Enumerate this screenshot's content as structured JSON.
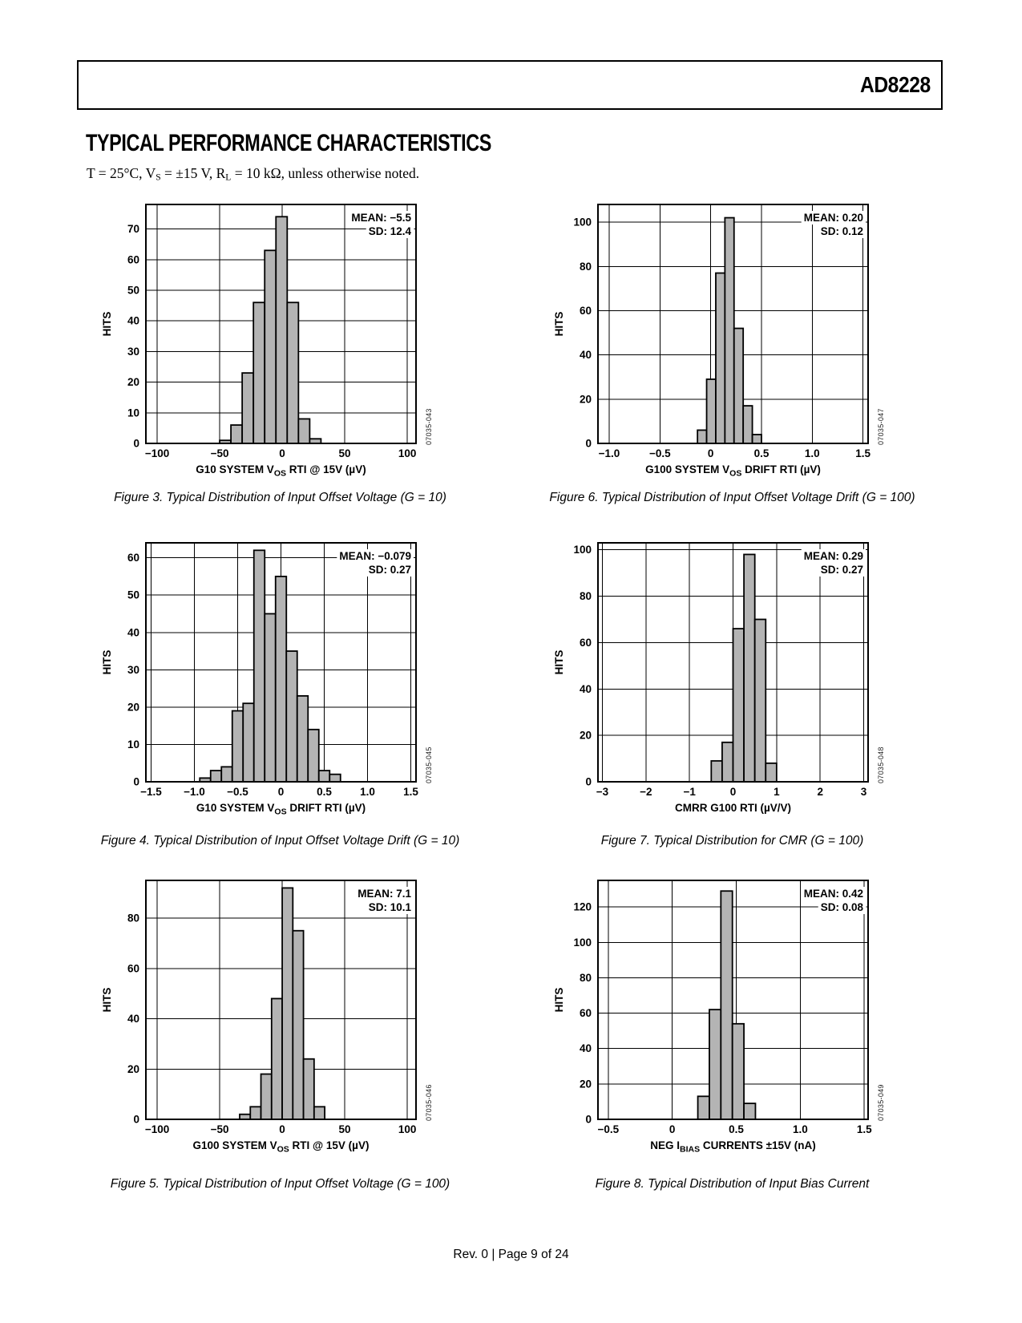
{
  "page": {
    "part_number": "AD8228",
    "section_title": "TYPICAL PERFORMANCE CHARACTERISTICS",
    "conditions_parts": [
      {
        "t": "T = 25°C, V"
      },
      {
        "t": "S",
        "sub": true
      },
      {
        "t": " = ±15 V, R"
      },
      {
        "t": "L",
        "sub": true
      },
      {
        "t": " = 10 kΩ, unless otherwise noted."
      }
    ],
    "footer": "Rev. 0 | Page 9 of 24"
  },
  "style": {
    "bar_fill": "#b4b4b4",
    "line_color": "#000000"
  },
  "chart_data": [
    {
      "type": "bar",
      "subtype": "histogram",
      "caption": "Figure 3. Typical Distribution of Input Offset Voltage (G = 10)",
      "code": "07035-043",
      "ylabel": "HITS",
      "xlabel_parts": [
        {
          "t": "G10 SYSTEM V"
        },
        {
          "t": "OS",
          "sub": true
        },
        {
          "t": " RTI @ 15V (µV)"
        }
      ],
      "xlim": [
        -109,
        107
      ],
      "ylim": [
        0,
        78
      ],
      "xticks": [
        -100,
        -50,
        0,
        50,
        100
      ],
      "xtick_labels": [
        "−100",
        "−50",
        "0",
        "50",
        "100"
      ],
      "yticks": [
        0,
        10,
        20,
        30,
        40,
        50,
        60,
        70
      ],
      "ytick_labels": [
        "0",
        "10",
        "20",
        "30",
        "40",
        "50",
        "60",
        "70"
      ],
      "bin_edges": [
        -50,
        -41,
        -32,
        -23,
        -14,
        -5,
        4,
        13,
        22,
        31
      ],
      "hits": [
        1,
        6,
        23,
        46,
        63,
        74,
        46,
        8,
        1.5
      ],
      "mean_label": "MEAN: −5.5",
      "sd_label": "SD: 12.4"
    },
    {
      "type": "bar",
      "subtype": "histogram",
      "caption": "Figure 6. Typical Distribution of Input Offset Voltage Drift (G = 100)",
      "code": "07035-047",
      "ylabel": "HITS",
      "xlabel_parts": [
        {
          "t": "G100 SYSTEM V"
        },
        {
          "t": "OS",
          "sub": true
        },
        {
          "t": " DRIFT RTI (µV)"
        }
      ],
      "xlim": [
        -1.11,
        1.55
      ],
      "ylim": [
        0,
        108
      ],
      "xticks": [
        -1.0,
        -0.5,
        0,
        0.5,
        1.0,
        1.5
      ],
      "xtick_labels": [
        "−1.0",
        "−0.5",
        "0",
        "0.5",
        "1.0",
        "1.5"
      ],
      "yticks": [
        0,
        20,
        40,
        60,
        80,
        100
      ],
      "ytick_labels": [
        "0",
        "20",
        "40",
        "60",
        "80",
        "100"
      ],
      "bin_edges": [
        -0.13,
        -0.04,
        0.05,
        0.14,
        0.23,
        0.32,
        0.41,
        0.5
      ],
      "hits": [
        6,
        29,
        77,
        102,
        52,
        17,
        4
      ],
      "mean_label": "MEAN: 0.20",
      "sd_label": "SD: 0.12"
    },
    {
      "type": "bar",
      "subtype": "histogram",
      "caption": "Figure 4. Typical Distribution of Input Offset Voltage Drift (G = 10)",
      "code": "07035-045",
      "ylabel": "HITS",
      "xlabel_parts": [
        {
          "t": "G10 SYSTEM V"
        },
        {
          "t": "OS",
          "sub": true
        },
        {
          "t": " DRIFT RTI (µV)"
        }
      ],
      "xlim": [
        -1.56,
        1.56
      ],
      "ylim": [
        0,
        64
      ],
      "xticks": [
        -1.5,
        -1.0,
        -0.5,
        0,
        0.5,
        1.0,
        1.5
      ],
      "xtick_labels": [
        "−1.5",
        "−1.0",
        "−0.5",
        "0",
        "0.5",
        "1.0",
        "1.5"
      ],
      "yticks": [
        0,
        10,
        20,
        30,
        40,
        50,
        60
      ],
      "ytick_labels": [
        "0",
        "10",
        "20",
        "30",
        "40",
        "50",
        "60"
      ],
      "bin_edges": [
        -0.9375,
        -0.8125,
        -0.6875,
        -0.5625,
        -0.4375,
        -0.3125,
        -0.1875,
        -0.0625,
        0.0625,
        0.1875,
        0.3125,
        0.4375,
        0.5625,
        0.6875
      ],
      "hits": [
        1,
        3,
        4,
        19,
        21,
        62,
        45,
        55,
        35,
        23,
        14,
        3,
        2
      ],
      "mean_label": "MEAN: −0.079",
      "sd_label": "SD: 0.27"
    },
    {
      "type": "bar",
      "subtype": "histogram",
      "caption": "Figure 7. Typical Distribution for CMR (G = 100)",
      "code": "07035-048",
      "ylabel": "HITS",
      "xlabel_parts": [
        {
          "t": "CMRR G100 RTI (µV/V)"
        }
      ],
      "xlim": [
        -3.1,
        3.1
      ],
      "ylim": [
        0,
        103
      ],
      "xticks": [
        -3,
        -2,
        -1,
        0,
        1,
        2,
        3
      ],
      "xtick_labels": [
        "−3",
        "−2",
        "−1",
        "0",
        "1",
        "2",
        "3"
      ],
      "yticks": [
        0,
        20,
        40,
        60,
        80,
        100
      ],
      "ytick_labels": [
        "0",
        "20",
        "40",
        "60",
        "80",
        "100"
      ],
      "bin_edges": [
        -0.5,
        -0.25,
        0,
        0.25,
        0.5,
        0.75,
        1
      ],
      "hits": [
        9,
        17,
        66,
        98,
        70,
        8
      ],
      "mean_label": "MEAN: 0.29",
      "sd_label": "SD: 0.27"
    },
    {
      "type": "bar",
      "subtype": "histogram",
      "caption": "Figure 5. Typical Distribution of Input Offset Voltage (G = 100)",
      "code": "07035-046",
      "ylabel": "HITS",
      "xlabel_parts": [
        {
          "t": "G100 SYSTEM V"
        },
        {
          "t": "OS",
          "sub": true
        },
        {
          "t": " RTI @ 15V (µV)"
        }
      ],
      "xlim": [
        -109,
        107
      ],
      "ylim": [
        0,
        95
      ],
      "xticks": [
        -100,
        -50,
        0,
        50,
        100
      ],
      "xtick_labels": [
        "−100",
        "−50",
        "0",
        "50",
        "100"
      ],
      "yticks": [
        0,
        20,
        40,
        60,
        80
      ],
      "ytick_labels": [
        "0",
        "20",
        "40",
        "60",
        "80"
      ],
      "bin_edges": [
        -34,
        -25.5,
        -17,
        -8.5,
        0,
        8.5,
        17,
        25.5,
        34
      ],
      "hits": [
        2,
        5,
        18,
        48,
        92,
        75,
        24,
        5
      ],
      "mean_label": "MEAN: 7.1",
      "sd_label": "SD: 10.1"
    },
    {
      "type": "bar",
      "subtype": "histogram",
      "caption": "Figure 8. Typical Distribution of Input Bias Current",
      "code": "07035-049",
      "ylabel": "HITS",
      "xlabel_parts": [
        {
          "t": "NEG I"
        },
        {
          "t": "BIAS",
          "sub": true
        },
        {
          "t": " CURRENTS ±15V (nA)"
        }
      ],
      "xlim": [
        -0.58,
        1.53
      ],
      "ylim": [
        0,
        135
      ],
      "xticks": [
        -0.5,
        0,
        0.5,
        1.0,
        1.5
      ],
      "xtick_labels": [
        "−0.5",
        "0",
        "0.5",
        "1.0",
        "1.5"
      ],
      "yticks": [
        0,
        20,
        40,
        60,
        80,
        100,
        120
      ],
      "ytick_labels": [
        "0",
        "20",
        "40",
        "60",
        "80",
        "100",
        "120"
      ],
      "bin_edges": [
        0.2,
        0.29,
        0.38,
        0.47,
        0.56,
        0.65
      ],
      "hits": [
        13,
        62,
        129,
        54,
        9
      ],
      "mean_label": "MEAN: 0.42",
      "sd_label": "SD: 0.08"
    }
  ]
}
